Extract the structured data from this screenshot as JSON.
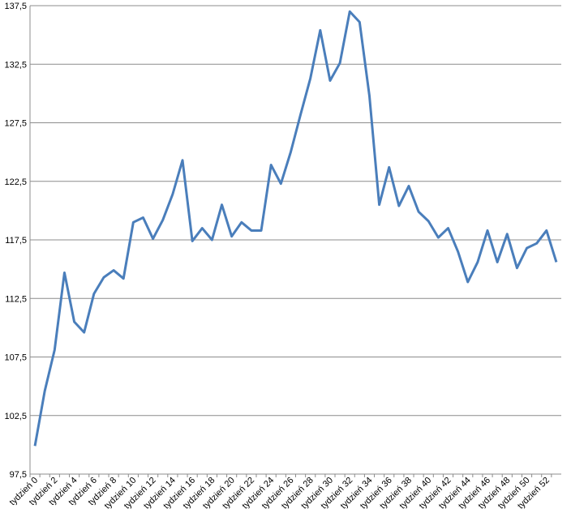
{
  "chart_data": {
    "type": "line",
    "categories": [
      "tydzień 0",
      null,
      "tydzień 2",
      null,
      "tydzień 4",
      null,
      "tydzień 6",
      null,
      "tydzień 8",
      null,
      "tydzień 10",
      null,
      "tydzień 12",
      null,
      "tydzień 14",
      null,
      "tydzień 16",
      null,
      "tydzień 18",
      null,
      "tydzień 20",
      null,
      "tydzień 22",
      null,
      "tydzień 24",
      null,
      "tydzień 26",
      null,
      "tydzień 28",
      null,
      "tydzień 30",
      null,
      "tydzień 32",
      null,
      "tydzień 34",
      null,
      "tydzień 36",
      null,
      "tydzień 38",
      null,
      "tydzień 40",
      null,
      "tydzień 42",
      null,
      "tydzień 44",
      null,
      "tydzień 46",
      null,
      "tydzień 48",
      null,
      "tydzień 50",
      null,
      "tydzień 52",
      null
    ],
    "series": [
      {
        "color": "#4a7ebb",
        "values": [
          99.9,
          104.6,
          108.1,
          114.7,
          110.5,
          109.6,
          112.9,
          114.3,
          114.9,
          114.2,
          119.0,
          119.4,
          117.6,
          119.2,
          121.4,
          124.3,
          117.4,
          118.5,
          117.5,
          120.5,
          117.8,
          119.0,
          118.3,
          118.3,
          123.9,
          122.3,
          125.0,
          128.2,
          131.3,
          135.4,
          131.1,
          132.6,
          137.0,
          136.1,
          129.8,
          120.5,
          123.7,
          120.4,
          122.1,
          119.9,
          119.1,
          117.7,
          118.5,
          116.5,
          113.9,
          115.6,
          118.3,
          115.6,
          118.0,
          115.1,
          116.8,
          117.2,
          118.3,
          115.6
        ]
      }
    ],
    "ylim": [
      97.5,
      137.5
    ],
    "yticks": [
      {
        "value": 97.5,
        "label": "97,5"
      },
      {
        "value": 102.5,
        "label": "102,5"
      },
      {
        "value": 107.5,
        "label": "107,5"
      },
      {
        "value": 112.5,
        "label": "112,5"
      },
      {
        "value": 117.5,
        "label": "117,5"
      },
      {
        "value": 122.5,
        "label": "122,5"
      },
      {
        "value": 127.5,
        "label": "127,5"
      },
      {
        "value": 132.5,
        "label": "132,5"
      },
      {
        "value": 137.5,
        "label": "137,5"
      }
    ],
    "grid": true
  }
}
